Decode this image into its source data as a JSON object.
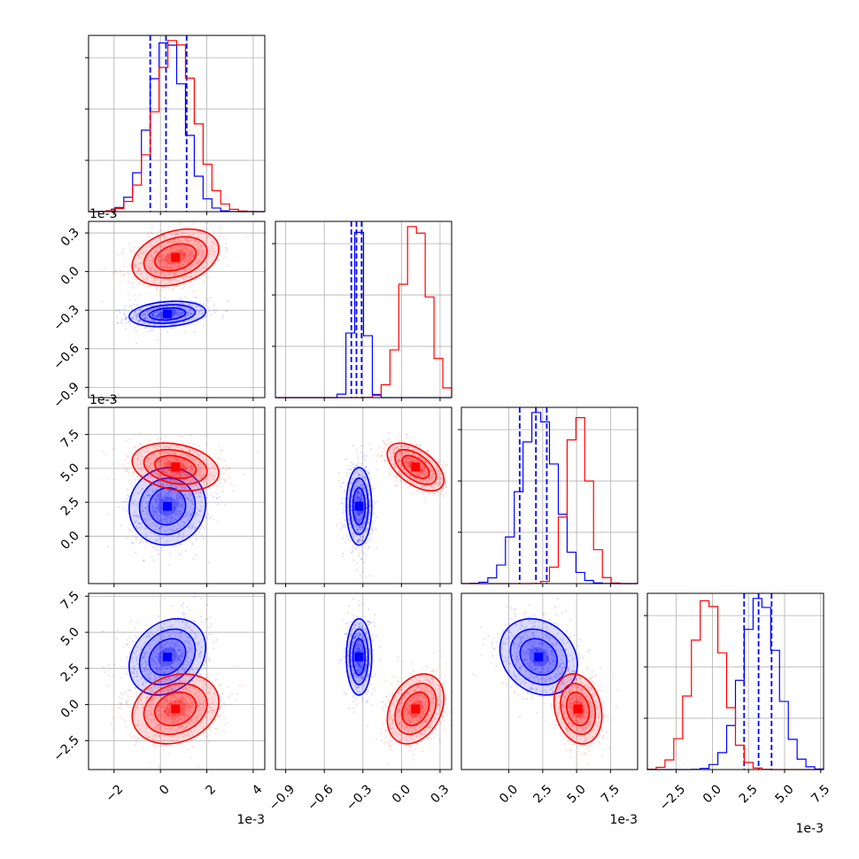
{
  "colors": {
    "series_a": "#0000ff",
    "series_b": "#ff0000",
    "grid": "#b0b0b0",
    "axes": "#000000"
  },
  "chart_data": {
    "type": "corner",
    "n_params": 4,
    "grid": true,
    "legend": "none",
    "offset_text": [
      "",
      "1e-3",
      "1e-3",
      ""
    ],
    "x_offset_text": [
      "1e-3",
      "",
      "1e-3",
      "1e-3"
    ],
    "ranges": [
      [
        -3.1,
        4.5
      ],
      [
        -0.98,
        0.39
      ],
      [
        -3.5,
        9.5
      ],
      [
        -4.5,
        7.7
      ]
    ],
    "tick_values": [
      [
        -2,
        0,
        2,
        4
      ],
      [
        -0.9,
        -0.6,
        -0.3,
        0.0,
        0.3
      ],
      [
        0.0,
        2.5,
        5.0,
        7.5
      ],
      [
        -2.5,
        0.0,
        2.5,
        5.0,
        7.5
      ]
    ],
    "tick_labels": [
      [
        "−2",
        "0",
        "2",
        "4"
      ],
      [
        "−0.9",
        "−0.6",
        "−0.3",
        "0.0",
        "0.3"
      ],
      [
        "0.0",
        "2.5",
        "5.0",
        "7.5"
      ],
      [
        "−2.5",
        "0.0",
        "2.5",
        "5.0",
        "7.5"
      ]
    ],
    "y_tick_values": {
      "1": [
        -0.9,
        -0.6,
        -0.3,
        0.0,
        0.3
      ],
      "2": [
        0.0,
        2.5,
        5.0,
        7.5
      ],
      "3": [
        -2.5,
        0.0,
        2.5,
        5.0,
        7.5
      ]
    },
    "series": [
      {
        "color": "blue",
        "means": [
          0.3,
          -0.33,
          2.2,
          3.3
        ],
        "sds": [
          0.75,
          0.045,
          1.3,
          1.2
        ],
        "quantiles": [
          [
            -0.44,
            0.24,
            1.13
          ],
          [
            -0.39,
            -0.35,
            -0.31
          ],
          [
            0.8,
            2.0,
            2.8
          ],
          [
            2.2,
            3.2,
            4.1
          ]
        ],
        "correlations": [
          [
            1,
            2,
            0.0
          ],
          [
            0,
            2,
            0.05
          ],
          [
            0,
            3,
            0.25
          ],
          [
            2,
            3,
            -0.2
          ],
          [
            1,
            3,
            0.0
          ],
          [
            0,
            1,
            0.2
          ]
        ]
      },
      {
        "color": "red",
        "means": [
          0.65,
          0.11,
          5.1,
          -0.3
        ],
        "sds": [
          0.85,
          0.1,
          0.8,
          1.1
        ],
        "quantiles": null,
        "correlations": [
          [
            1,
            2,
            -0.55
          ],
          [
            0,
            2,
            -0.25
          ],
          [
            0,
            3,
            0.2
          ],
          [
            2,
            3,
            -0.2
          ],
          [
            1,
            3,
            0.3
          ],
          [
            0,
            1,
            0.3
          ]
        ]
      }
    ]
  }
}
